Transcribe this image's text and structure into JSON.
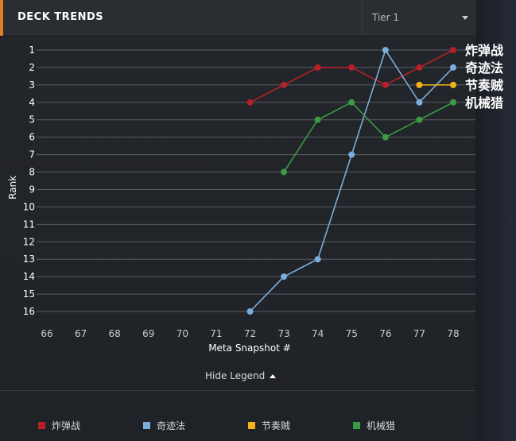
{
  "header": {
    "title": "DECK TRENDS",
    "tier_select": {
      "value": "Tier 1"
    }
  },
  "hide_legend_label": "Hide Legend",
  "chart_data": {
    "type": "line",
    "xlabel": "Meta Snapshot #",
    "ylabel": "Rank",
    "x_ticks": [
      "66",
      "67",
      "68",
      "69",
      "70",
      "71",
      "72",
      "73",
      "74",
      "75",
      "76",
      "77",
      "78"
    ],
    "y_ticks": [
      "1",
      "2",
      "3",
      "4",
      "5",
      "6",
      "7",
      "8",
      "9",
      "10",
      "11",
      "12",
      "13",
      "14",
      "15",
      "16"
    ],
    "xlim": [
      66,
      78
    ],
    "ylim": [
      1,
      16
    ],
    "y_inverted": true,
    "grid": true,
    "series": [
      {
        "name": "炸弹战",
        "color": "#b5202a",
        "x": [
          72,
          73,
          74,
          75,
          76,
          77,
          78
        ],
        "y": [
          4,
          3,
          2,
          2,
          3,
          2,
          1
        ]
      },
      {
        "name": "奇迹法",
        "color": "#7aaedc",
        "x": [
          72,
          73,
          74,
          75,
          76,
          77,
          78
        ],
        "y": [
          16,
          14,
          13,
          7,
          1,
          4,
          2
        ]
      },
      {
        "name": "节奏贼",
        "color": "#f2b31c",
        "x": [
          77,
          78
        ],
        "y": [
          3,
          3
        ]
      },
      {
        "name": "机械猎",
        "color": "#3a9a45",
        "x": [
          73,
          74,
          75,
          76,
          77,
          78
        ],
        "y": [
          8,
          5,
          4,
          6,
          5,
          4
        ]
      }
    ]
  }
}
